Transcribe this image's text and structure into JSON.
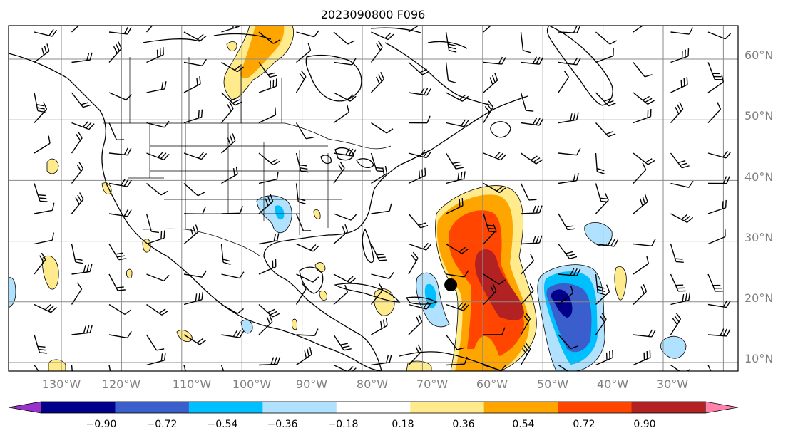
{
  "title": "2023090800 F096",
  "lon_labels": [
    "130°W",
    "120°W",
    "110°W",
    "100°W",
    "90°W",
    "80°W",
    "70°W",
    "60°W",
    "50°W",
    "40°W",
    "30°W"
  ],
  "lat_labels": [
    "60°N",
    "50°N",
    "40°N",
    "30°N",
    "20°N",
    "10°N"
  ],
  "colorbar": {
    "colors": [
      "#9932cc",
      "#00008b",
      "#3a5fcd",
      "#00bfff",
      "#b0e2ff",
      "#ffffff",
      "#ffeb8c",
      "#ffa500",
      "#ff4500",
      "#b22222",
      "#ff82ab"
    ],
    "tick_labels": [
      "−0.90",
      "−0.72",
      "−0.54",
      "−0.36",
      "−0.18",
      "0.18",
      "0.36",
      "0.54",
      "0.72",
      "0.90"
    ]
  },
  "storm_marker_lonlat": [
    -65.3,
    22.8
  ]
}
